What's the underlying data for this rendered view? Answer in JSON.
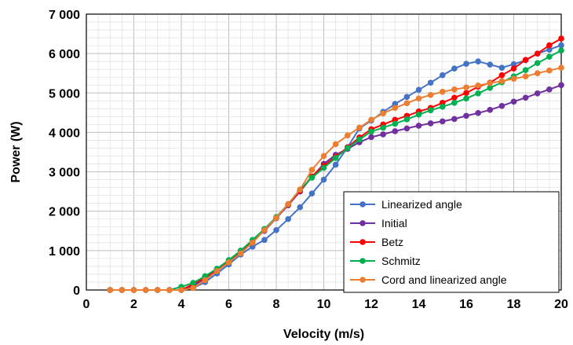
{
  "chart_data": {
    "type": "line",
    "xlabel": "Velocity (m/s)",
    "ylabel": "Power (W)",
    "xlim": [
      0,
      20
    ],
    "ylim": [
      0,
      7000
    ],
    "xticks": [
      0,
      2,
      4,
      6,
      8,
      10,
      12,
      14,
      16,
      18,
      20
    ],
    "yticks": [
      0,
      1000,
      2000,
      3000,
      4000,
      5000,
      6000,
      7000
    ],
    "xtick_labels": [
      "0",
      "2",
      "4",
      "6",
      "8",
      "10",
      "12",
      "14",
      "16",
      "18",
      "20"
    ],
    "ytick_labels": [
      "0",
      "1 000",
      "2 000",
      "3 000",
      "4 000",
      "5 000",
      "6 000",
      "7 000"
    ],
    "grid": true,
    "legend_position": "bottom-right",
    "x": [
      1,
      1.5,
      2,
      2.5,
      3,
      3.5,
      4,
      4.5,
      5,
      5.5,
      6,
      6.5,
      7,
      7.5,
      8,
      8.5,
      9,
      9.5,
      10,
      10.5,
      11,
      11.5,
      12,
      12.5,
      13,
      13.5,
      14,
      14.5,
      15,
      15.5,
      16,
      16.5,
      17,
      17.5,
      18,
      18.5,
      19,
      19.5,
      20
    ],
    "series": [
      {
        "name": "Linearized angle",
        "color": "#4472c4",
        "values": [
          0,
          0,
          0,
          0,
          0,
          0,
          0,
          50,
          200,
          420,
          650,
          900,
          1100,
          1270,
          1520,
          1800,
          2100,
          2450,
          2800,
          3180,
          3620,
          4100,
          4300,
          4520,
          4720,
          4900,
          5080,
          5260,
          5450,
          5620,
          5740,
          5800,
          5720,
          5640,
          5730,
          5830,
          6000,
          6100,
          6210
        ]
      },
      {
        "name": "Initial",
        "color": "#7030a0",
        "values": [
          0,
          0,
          0,
          0,
          0,
          0,
          0,
          100,
          300,
          500,
          720,
          980,
          1250,
          1500,
          1820,
          2150,
          2500,
          2870,
          3200,
          3430,
          3580,
          3750,
          3880,
          3950,
          4030,
          4100,
          4170,
          4230,
          4280,
          4340,
          4420,
          4490,
          4570,
          4670,
          4780,
          4880,
          4990,
          5090,
          5200
        ]
      },
      {
        "name": " Betz",
        "color": "#ff0000",
        "values": [
          0,
          0,
          0,
          0,
          0,
          0,
          0,
          150,
          320,
          530,
          750,
          990,
          1260,
          1540,
          1840,
          2170,
          2520,
          2880,
          3150,
          3380,
          3620,
          3870,
          4080,
          4200,
          4320,
          4420,
          4530,
          4620,
          4750,
          4880,
          5000,
          5160,
          5260,
          5450,
          5620,
          5840,
          6000,
          6210,
          6380
        ]
      },
      {
        "name": " Schmitz",
        "color": "#00b050",
        "values": [
          0,
          0,
          0,
          0,
          0,
          0,
          80,
          180,
          350,
          540,
          760,
          1000,
          1270,
          1550,
          1850,
          2180,
          2550,
          2850,
          3100,
          3350,
          3600,
          3820,
          4020,
          4120,
          4220,
          4330,
          4450,
          4560,
          4650,
          4750,
          4860,
          4990,
          5130,
          5270,
          5420,
          5580,
          5760,
          5920,
          6080
        ]
      },
      {
        "name": "Cord and linearized angle",
        "color": "#ed7d31",
        "values": [
          0,
          0,
          0,
          0,
          0,
          0,
          0,
          50,
          250,
          480,
          700,
          930,
          1200,
          1520,
          1830,
          2180,
          2550,
          3050,
          3400,
          3700,
          3920,
          4120,
          4320,
          4480,
          4620,
          4740,
          4860,
          4950,
          5030,
          5090,
          5140,
          5190,
          5250,
          5300,
          5360,
          5420,
          5500,
          5570,
          5640
        ]
      }
    ]
  }
}
